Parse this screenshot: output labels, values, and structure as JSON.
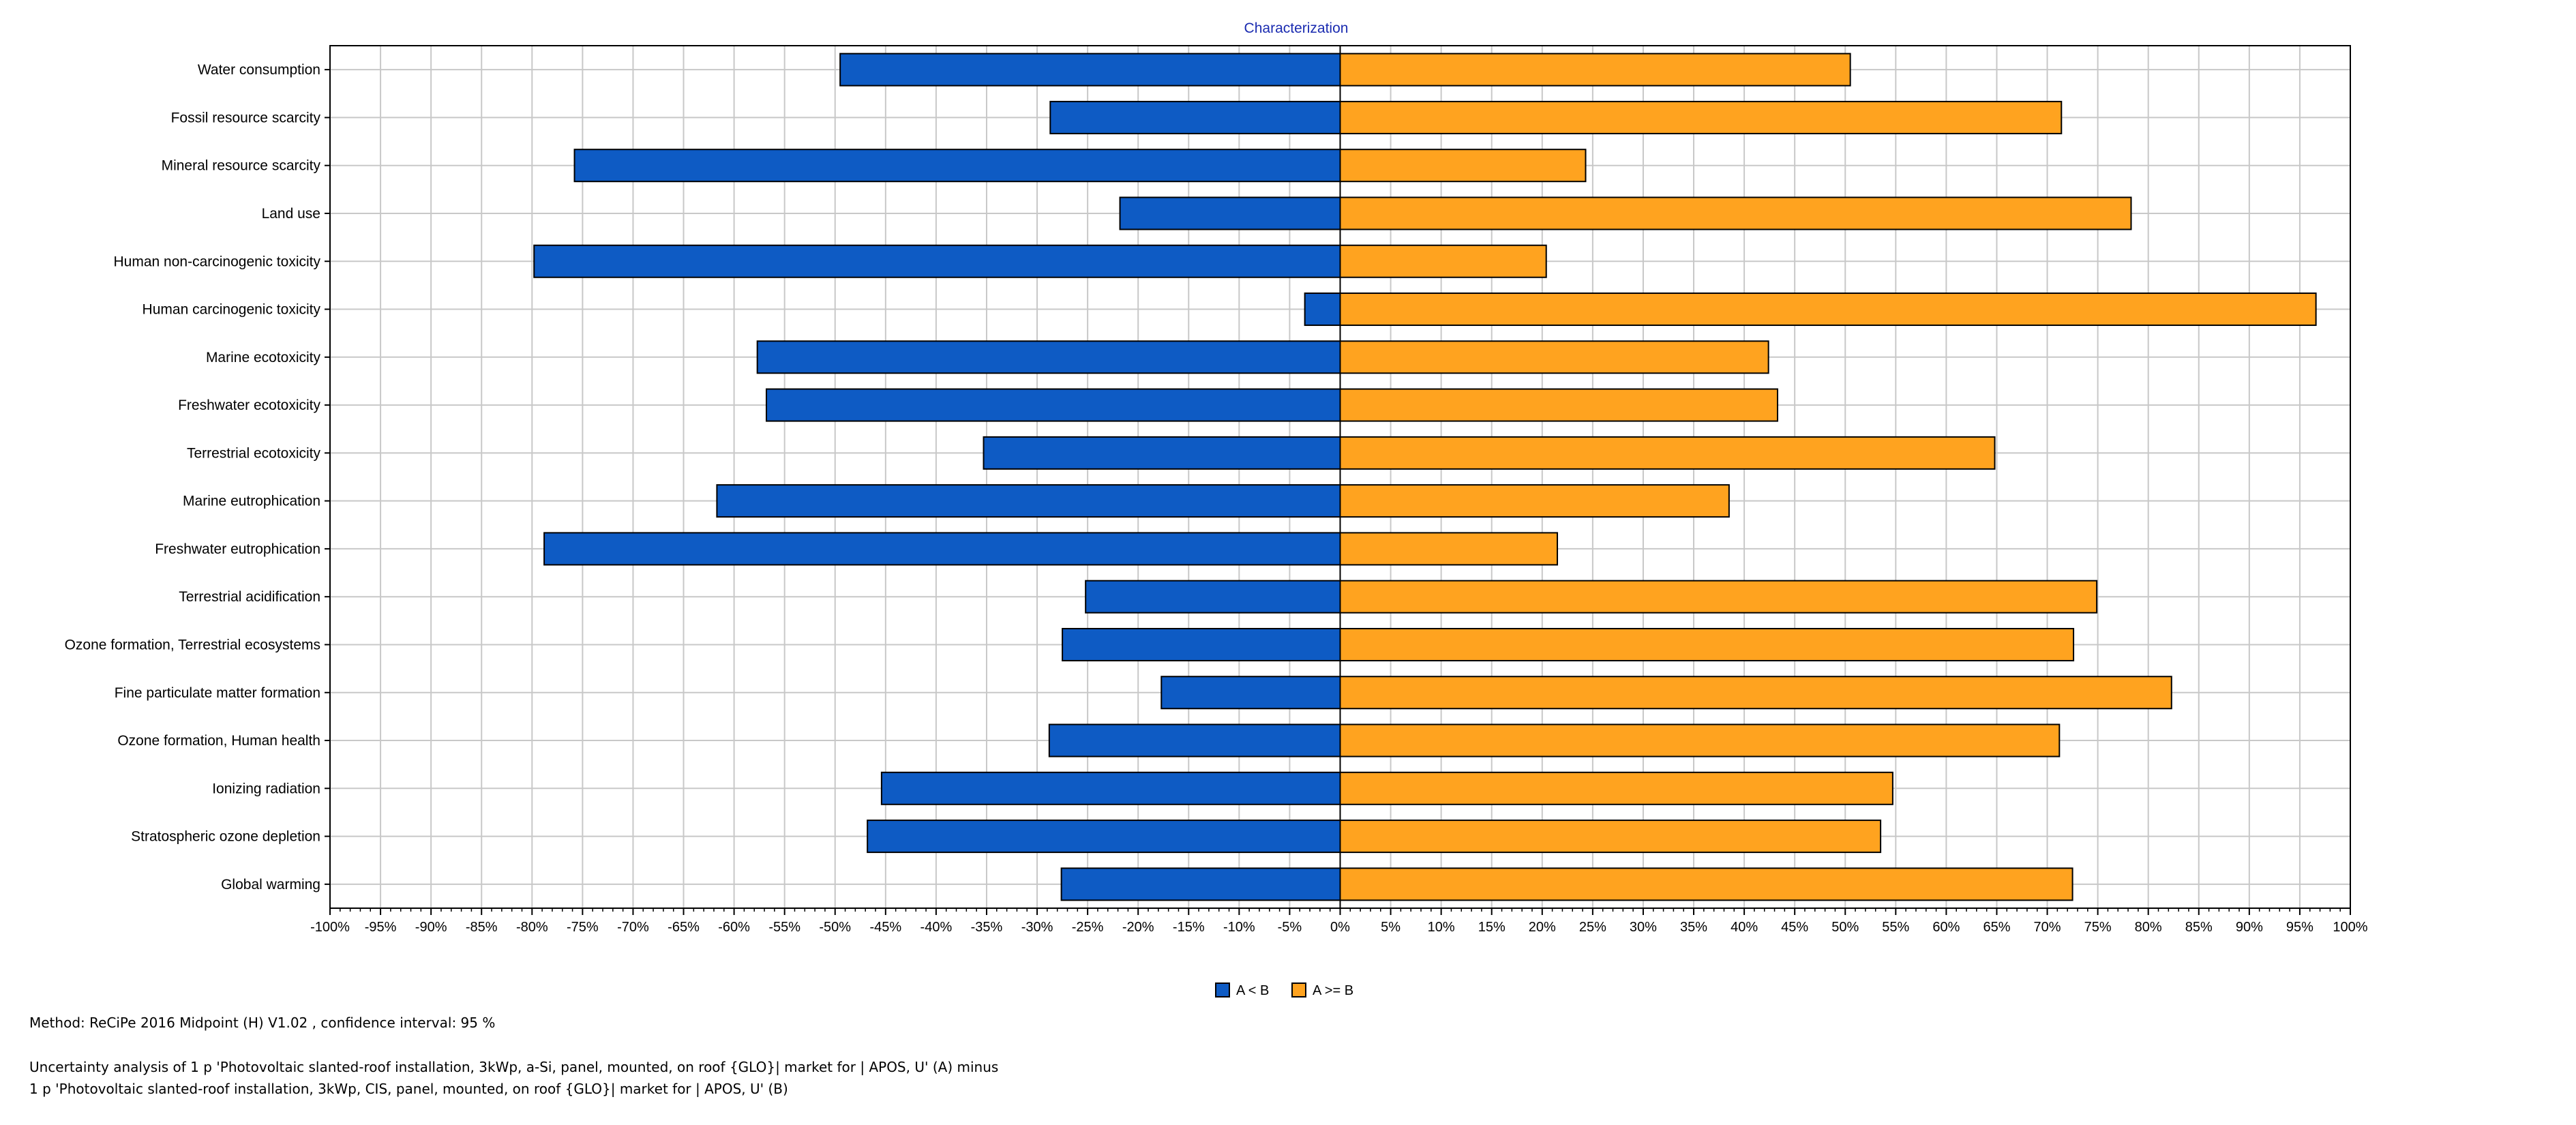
{
  "chart_data": {
    "type": "bar",
    "orientation": "horizontal",
    "title": "Characterization",
    "categories": [
      "Water consumption",
      "Fossil resource scarcity",
      "Mineral resource scarcity",
      "Land use",
      "Human non-carcinogenic toxicity",
      "Human carcinogenic toxicity",
      "Marine ecotoxicity",
      "Freshwater ecotoxicity",
      "Terrestrial ecotoxicity",
      "Marine eutrophication",
      "Freshwater eutrophication",
      "Terrestrial acidification",
      "Ozone formation, Terrestrial ecosystems",
      "Fine particulate matter formation",
      "Ozone formation, Human health",
      "Ionizing radiation",
      "Stratospheric ozone depletion",
      "Global warming"
    ],
    "series": [
      {
        "name": "A < B",
        "color": "#0E5BC4",
        "values": [
          -49.5,
          -28.7,
          -75.8,
          -21.8,
          -79.8,
          -3.5,
          -57.7,
          -56.8,
          -35.3,
          -61.7,
          -78.8,
          -25.2,
          -27.5,
          -17.7,
          -28.8,
          -45.4,
          -46.8,
          -27.6
        ]
      },
      {
        "name": "A >= B",
        "color": "#FFA31F",
        "values": [
          50.5,
          71.4,
          24.3,
          78.3,
          20.4,
          96.6,
          42.4,
          43.3,
          64.8,
          38.5,
          21.5,
          74.9,
          72.6,
          82.3,
          71.2,
          54.7,
          53.5,
          72.5
        ]
      }
    ],
    "xlim": [
      -100,
      100
    ],
    "xticks": [
      "-100%",
      "-95%",
      "-90%",
      "-85%",
      "-80%",
      "-75%",
      "-70%",
      "-65%",
      "-60%",
      "-55%",
      "-50%",
      "-45%",
      "-40%",
      "-35%",
      "-30%",
      "-25%",
      "-20%",
      "-15%",
      "-10%",
      "-5%",
      "0%",
      "5%",
      "10%",
      "15%",
      "20%",
      "25%",
      "30%",
      "35%",
      "40%",
      "45%",
      "50%",
      "55%",
      "60%",
      "65%",
      "70%",
      "75%",
      "80%",
      "85%",
      "90%",
      "95%",
      "100%"
    ],
    "xlabel": "",
    "ylabel": "",
    "grid": true,
    "legend": "bottom-center"
  },
  "footer": {
    "method": "Method: ReCiPe 2016 Midpoint (H) V1.02 , confidence interval: 95 %",
    "description_line1": "Uncertainty analysis of 1 p 'Photovoltaic slanted-roof installation, 3kWp, a-Si, panel, mounted, on roof {GLO}| market for | APOS, U' (A) minus",
    "description_line2": "1 p 'Photovoltaic slanted-roof installation, 3kWp, CIS, panel, mounted, on roof {GLO}| market for | APOS, U' (B)"
  }
}
